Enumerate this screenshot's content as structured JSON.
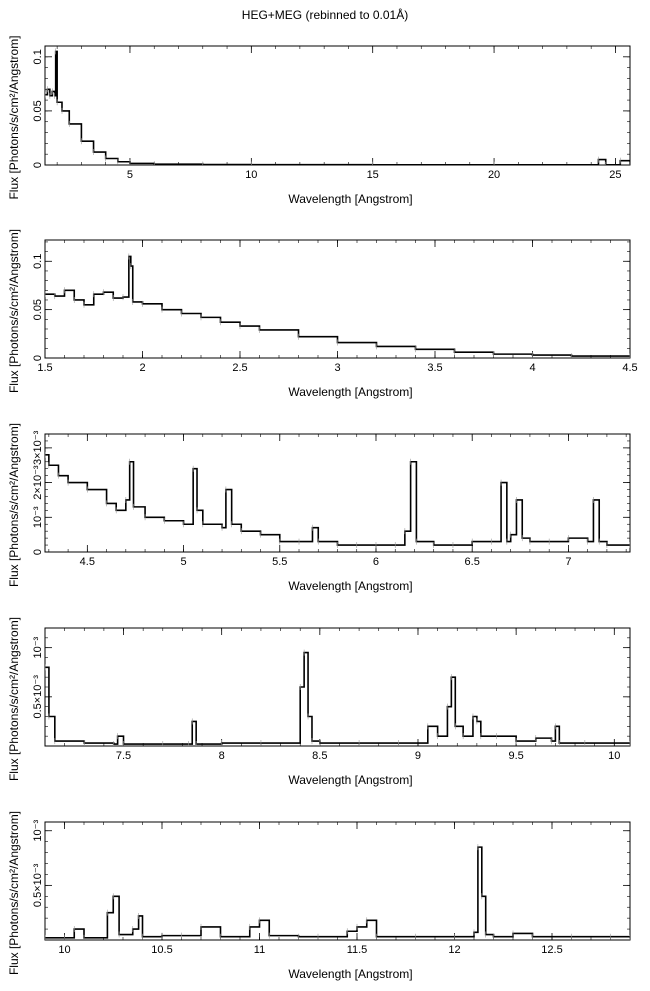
{
  "title": "HEG+MEG (rebinned to 0.01Å)",
  "chart_data": [
    {
      "type": "line",
      "xlabel": "Wavelength [Angstrom]",
      "ylabel": "Flux [Photons/s/cm²/Angstrom]",
      "xlim": [
        1.5,
        25.6
      ],
      "ylim": [
        0,
        0.11
      ],
      "xticks": [
        5,
        10,
        15,
        20,
        25
      ],
      "xticklabels": [
        "5",
        "10",
        "15",
        "20",
        "25"
      ],
      "yticks": [
        0,
        0.05,
        0.1
      ],
      "yticklabels": [
        "0",
        "0.05",
        "0.1"
      ],
      "series": [
        {
          "x": [
            1.5,
            1.6,
            1.7,
            1.8,
            1.9,
            1.94,
            2.0,
            2.2,
            2.5,
            3.0,
            3.5,
            4.0,
            4.5,
            5.0,
            6.0,
            8.0,
            10.0,
            15.0,
            20.0,
            24.3,
            24.6,
            25.2,
            25.6
          ],
          "y": [
            0.065,
            0.07,
            0.064,
            0.068,
            0.064,
            0.105,
            0.058,
            0.05,
            0.038,
            0.022,
            0.012,
            0.006,
            0.003,
            0.0015,
            0.0008,
            0.0004,
            0.0003,
            0.0002,
            0.0002,
            0.005,
            0.0002,
            0.004,
            0.0002
          ]
        }
      ]
    },
    {
      "type": "line",
      "xlabel": "Wavelength [Angstrom]",
      "ylabel": "Flux [Photons/s/cm²/Angstrom]",
      "xlim": [
        1.5,
        4.5
      ],
      "ylim": [
        0,
        0.122
      ],
      "xticks": [
        1.5,
        2,
        2.5,
        3,
        3.5,
        4,
        4.5
      ],
      "xticklabels": [
        "1.5",
        "2",
        "2.5",
        "3",
        "3.5",
        "4",
        "4.5"
      ],
      "yticks": [
        0,
        0.05,
        0.1
      ],
      "yticklabels": [
        "0",
        "0.05",
        "0.1"
      ],
      "series": [
        {
          "x": [
            1.5,
            1.55,
            1.6,
            1.65,
            1.7,
            1.75,
            1.8,
            1.85,
            1.9,
            1.93,
            1.94,
            1.95,
            2.0,
            2.1,
            2.2,
            2.3,
            2.4,
            2.5,
            2.6,
            2.8,
            3.0,
            3.2,
            3.4,
            3.6,
            3.8,
            4.0,
            4.2,
            4.5
          ],
          "y": [
            0.066,
            0.064,
            0.07,
            0.06,
            0.055,
            0.066,
            0.068,
            0.062,
            0.063,
            0.105,
            0.095,
            0.058,
            0.056,
            0.05,
            0.046,
            0.042,
            0.037,
            0.033,
            0.029,
            0.022,
            0.016,
            0.012,
            0.009,
            0.006,
            0.004,
            0.003,
            0.002,
            0.0015
          ]
        }
      ]
    },
    {
      "type": "line",
      "xlabel": "Wavelength [Angstrom]",
      "ylabel": "Flux [Photons/s/cm²/Angstrom]",
      "xlim": [
        4.28,
        7.32
      ],
      "ylim": [
        0,
        0.0034
      ],
      "xticks": [
        4.5,
        5,
        5.5,
        6,
        6.5,
        7
      ],
      "xticklabels": [
        "4.5",
        "5",
        "5.5",
        "6",
        "6.5",
        "7"
      ],
      "yticks": [
        0,
        0.001,
        0.002,
        0.003
      ],
      "yticklabels": [
        "0",
        "10⁻³",
        "2×10⁻³",
        "3×10⁻³"
      ],
      "series": [
        {
          "x": [
            4.28,
            4.3,
            4.35,
            4.4,
            4.5,
            4.6,
            4.65,
            4.7,
            4.72,
            4.74,
            4.8,
            4.9,
            5.0,
            5.05,
            5.07,
            5.1,
            5.2,
            5.22,
            5.25,
            5.3,
            5.4,
            5.5,
            5.6,
            5.67,
            5.7,
            5.8,
            5.9,
            6.0,
            6.1,
            6.15,
            6.18,
            6.21,
            6.3,
            6.4,
            6.5,
            6.6,
            6.65,
            6.68,
            6.7,
            6.73,
            6.76,
            6.8,
            6.9,
            7.0,
            7.1,
            7.13,
            7.16,
            7.2,
            7.32
          ],
          "y": [
            0.0028,
            0.0025,
            0.0022,
            0.002,
            0.0018,
            0.0014,
            0.0012,
            0.0015,
            0.0026,
            0.0013,
            0.001,
            0.0009,
            0.0008,
            0.0024,
            0.0012,
            0.0008,
            0.0007,
            0.0018,
            0.0008,
            0.0006,
            0.0005,
            0.0003,
            0.0003,
            0.0007,
            0.0003,
            0.0002,
            0.0002,
            0.0002,
            0.0002,
            0.0006,
            0.0026,
            0.0003,
            0.0002,
            0.0002,
            0.0003,
            0.0003,
            0.002,
            0.0003,
            0.0005,
            0.0015,
            0.0004,
            0.0003,
            0.0003,
            0.0004,
            0.0003,
            0.0015,
            0.0003,
            0.0002,
            0.0002
          ]
        }
      ]
    },
    {
      "type": "line",
      "xlabel": "Wavelength [Angstrom]",
      "ylabel": "Flux [Photons/s/cm²/Angstrom]",
      "xlim": [
        7.1,
        10.08
      ],
      "ylim": [
        0,
        0.0012
      ],
      "xticks": [
        7.5,
        8,
        8.5,
        9,
        9.5,
        10
      ],
      "xticklabels": [
        "7.5",
        "8",
        "8.5",
        "9",
        "9.5",
        "10"
      ],
      "yticks": [
        0.0005,
        0.001
      ],
      "yticklabels": [
        "0.5×10⁻³",
        "10⁻³"
      ],
      "series": [
        {
          "x": [
            7.1,
            7.12,
            7.15,
            7.3,
            7.45,
            7.47,
            7.5,
            7.7,
            7.83,
            7.85,
            7.87,
            8.0,
            8.2,
            8.4,
            8.42,
            8.44,
            8.46,
            8.5,
            8.7,
            8.9,
            9.05,
            9.1,
            9.15,
            9.17,
            9.19,
            9.23,
            9.28,
            9.3,
            9.32,
            9.4,
            9.5,
            9.6,
            9.68,
            9.7,
            9.72,
            9.85,
            10.08
          ],
          "y": [
            0.0008,
            0.0003,
            5e-05,
            3e-05,
            2e-05,
            0.0001,
            2e-05,
            2e-05,
            2e-05,
            0.00025,
            2e-05,
            3e-05,
            3e-05,
            0.0006,
            0.00095,
            0.0003,
            5e-05,
            3e-05,
            3e-05,
            3e-05,
            0.0002,
            0.0001,
            0.0004,
            0.0007,
            0.0002,
            0.0001,
            0.0003,
            0.00025,
            0.0001,
            0.0001,
            5e-05,
            8e-05,
            5e-05,
            0.0002,
            3e-05,
            3e-05,
            2e-05
          ]
        }
      ]
    },
    {
      "type": "line",
      "xlabel": "Wavelength [Angstrom]",
      "ylabel": "Flux [Photons/s/cm²/Angstrom]",
      "xlim": [
        9.9,
        12.9
      ],
      "ylim": [
        0,
        0.00108
      ],
      "xticks": [
        10,
        10.5,
        11,
        11.5,
        12,
        12.5
      ],
      "xticklabels": [
        "10",
        "10.5",
        "11",
        "11.5",
        "12",
        "12.5"
      ],
      "yticks": [
        0.0005,
        0.001
      ],
      "yticklabels": [
        "0.5×10⁻³",
        "10⁻³"
      ],
      "series": [
        {
          "x": [
            9.9,
            10.0,
            10.05,
            10.1,
            10.22,
            10.25,
            10.28,
            10.35,
            10.38,
            10.4,
            10.5,
            10.6,
            10.7,
            10.8,
            10.95,
            11.0,
            11.05,
            11.2,
            11.3,
            11.45,
            11.5,
            11.55,
            11.6,
            11.8,
            12.0,
            12.1,
            12.12,
            12.14,
            12.16,
            12.2,
            12.3,
            12.4,
            12.6,
            12.8,
            12.9
          ],
          "y": [
            2e-05,
            2e-05,
            0.0001,
            2e-05,
            0.00025,
            0.0004,
            5e-05,
            0.0001,
            0.00022,
            3e-05,
            4e-05,
            4e-05,
            0.00012,
            3e-05,
            0.00012,
            0.00018,
            4e-05,
            3e-05,
            3e-05,
            8e-05,
            0.00012,
            0.00018,
            3e-05,
            3e-05,
            3e-05,
            7e-05,
            0.00085,
            0.0004,
            5e-05,
            3e-05,
            6e-05,
            3e-05,
            3e-05,
            3e-05,
            2e-05
          ]
        }
      ]
    }
  ]
}
